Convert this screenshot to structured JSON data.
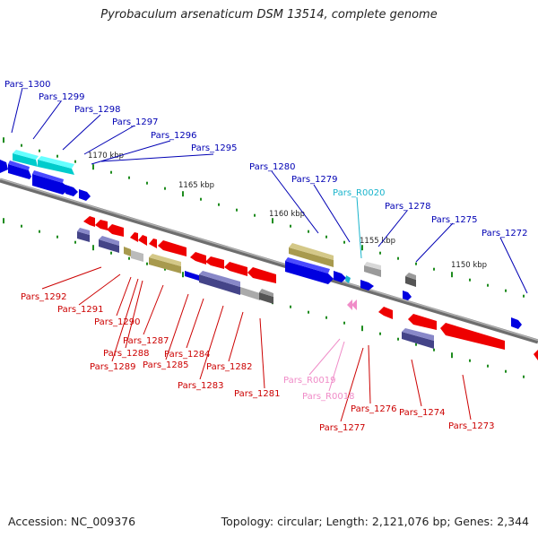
{
  "title": "Pyrobaculum arsenaticum DSM 13514, complete genome",
  "footer": {
    "accession": "Accession: NC_009376",
    "stats": "Topology: circular; Length: 2,121,076 bp; Genes: 2,344"
  },
  "colors": {
    "backbone": "#8a8a8a",
    "tick": "#1e8c1e",
    "forward_label": "#0000b4",
    "reverse_label": "#cc0000",
    "rna_forward": "#19b4cc",
    "rna_reverse": "#f08cc8"
  },
  "scale_labels": [
    {
      "text": "1170 kbp"
    },
    {
      "text": "1165 kbp"
    },
    {
      "text": "1160 kbp"
    },
    {
      "text": "1155 kbp"
    },
    {
      "text": "1150 kbp"
    }
  ],
  "forward_labels": [
    "Pars_1300",
    "Pars_1299",
    "Pars_1298",
    "Pars_1297",
    "Pars_1296",
    "Pars_1295",
    "Pars_1280",
    "Pars_1279",
    "Pars_R0020",
    "Pars_1278",
    "Pars_1275",
    "Pars_1272"
  ],
  "reverse_labels": [
    "Pars_1292",
    "Pars_1291",
    "Pars_1290",
    "Pars_1287",
    "Pars_1288",
    "Pars_1289",
    "Pars_1285",
    "Pars_1284",
    "Pars_1283",
    "Pars_1282",
    "Pars_1281",
    "Pars_R0019",
    "Pars_R0018",
    "Pars_1277",
    "Pars_1276",
    "Pars_1274",
    "Pars_1273"
  ]
}
